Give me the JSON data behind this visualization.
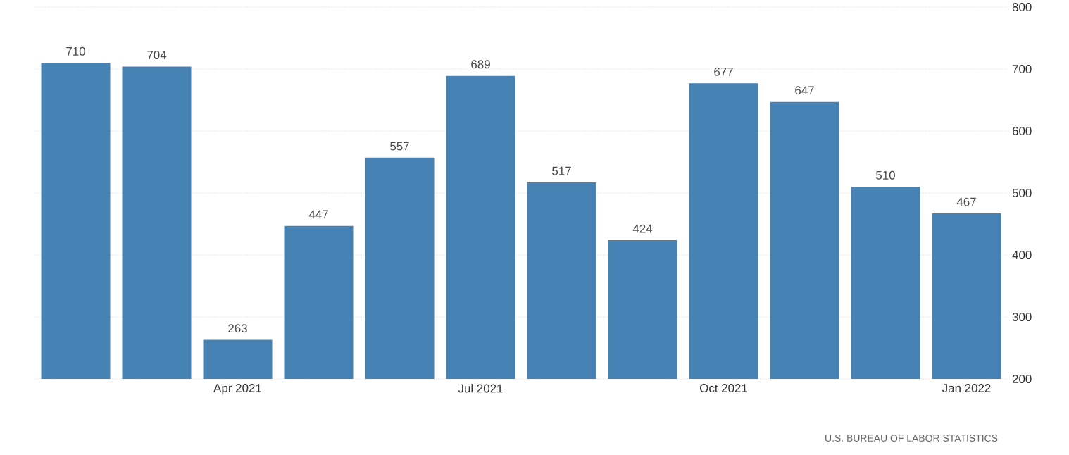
{
  "chart_data": {
    "type": "bar",
    "categories": [
      null,
      null,
      "Apr 2021",
      null,
      null,
      "Jul 2021",
      null,
      null,
      "Oct 2021",
      null,
      null,
      "Jan 2022"
    ],
    "values": [
      710,
      704,
      263,
      447,
      557,
      689,
      517,
      424,
      677,
      647,
      510,
      467
    ],
    "color": "#4682b4",
    "ylim": [
      200,
      800
    ],
    "yticks": [
      200,
      300,
      400,
      500,
      600,
      700,
      800
    ],
    "grid": "y",
    "data_labels": true,
    "annotations": [
      "U.S. BUREAU OF LABOR STATISTICS"
    ]
  }
}
